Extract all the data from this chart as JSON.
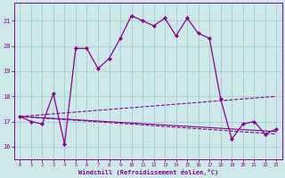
{
  "xlabel": "Windchill (Refroidissement éolien,°C)",
  "xlim": [
    -0.5,
    23.5
  ],
  "ylim": [
    15.5,
    21.7
  ],
  "yticks": [
    16,
    17,
    18,
    19,
    20,
    21
  ],
  "xticks": [
    0,
    1,
    2,
    3,
    4,
    5,
    6,
    7,
    8,
    9,
    10,
    11,
    12,
    13,
    14,
    15,
    16,
    17,
    18,
    19,
    20,
    21,
    22,
    23
  ],
  "bg_color": "#cce8e8",
  "grid_color": "#aacccc",
  "line_color": "#880088",
  "series": [
    {
      "x": [
        0,
        1,
        2,
        3,
        4,
        5,
        6,
        7,
        8,
        9,
        10,
        11,
        12,
        13,
        14,
        15,
        16,
        17,
        18,
        19,
        20,
        21,
        22,
        23
      ],
      "y": [
        17.2,
        17.0,
        16.9,
        18.1,
        16.1,
        19.9,
        19.9,
        19.1,
        19.5,
        20.3,
        21.2,
        21.0,
        20.8,
        21.1,
        20.4,
        21.1,
        20.5,
        20.3,
        17.9,
        16.3,
        16.9,
        17.0,
        16.5,
        16.7
      ],
      "marker": "D",
      "markersize": 2.0,
      "linewidth": 0.9,
      "linestyle": "-"
    },
    {
      "x": [
        0,
        23
      ],
      "y": [
        17.2,
        18.0
      ],
      "marker": null,
      "markersize": 0,
      "linewidth": 0.8,
      "linestyle": "--"
    },
    {
      "x": [
        0,
        23
      ],
      "y": [
        17.2,
        16.5
      ],
      "marker": null,
      "markersize": 0,
      "linewidth": 0.8,
      "linestyle": "--"
    },
    {
      "x": [
        0,
        23
      ],
      "y": [
        17.2,
        16.6
      ],
      "marker": null,
      "markersize": 0,
      "linewidth": 0.8,
      "linestyle": "-"
    }
  ]
}
